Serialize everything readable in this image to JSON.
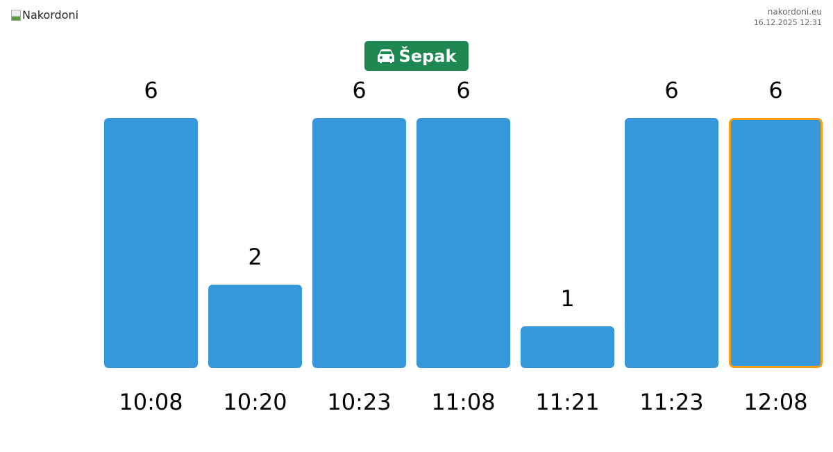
{
  "header": {
    "logo_alt": "Nakordoni",
    "site": "nakordoni.eu",
    "datetime": "16.12.2025 12:31"
  },
  "badge": {
    "icon": "car-icon",
    "label": "Šepak",
    "color": "#1e8752"
  },
  "chart_data": {
    "type": "bar",
    "categories": [
      "10:08",
      "10:20",
      "10:23",
      "11:08",
      "11:21",
      "11:23",
      "12:08"
    ],
    "values": [
      6,
      2,
      6,
      6,
      1,
      6,
      6
    ],
    "highlighted_index": 6,
    "bar_color": "#3698db",
    "highlight_color": "#f39c12",
    "ylim": [
      0,
      6
    ],
    "title": "",
    "xlabel": "",
    "ylabel": ""
  }
}
